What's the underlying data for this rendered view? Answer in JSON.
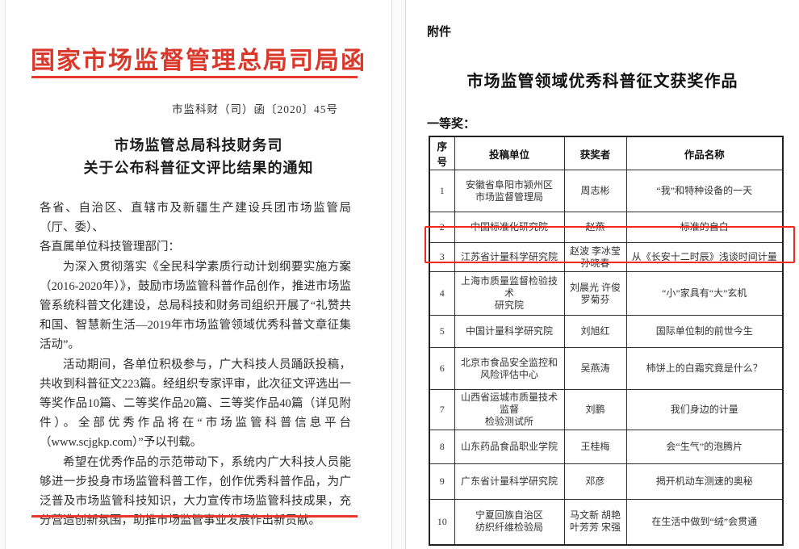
{
  "colors": {
    "letterhead_red": "#d9382a",
    "rule_red": "#e8382c",
    "highlight_red": "#f2281c"
  },
  "left_page": {
    "letterhead_title": "国家市场监督管理总局司局函",
    "doc_number": "市监科财（司）函〔2020〕45号",
    "title_line1": "市场监管总局科技财务司",
    "title_line2": "关于公布科普征文评比结果的通知",
    "salutation": [
      "各省、自治区、直辖市及新疆生产建设兵团市场监管局（厅、委）、",
      "各直属单位科技管理部门："
    ],
    "paragraphs": [
      "为深入贯彻落实《全民科学素质行动计划纲要实施方案（2016-2020年）》，鼓励市场监管科普作品创作，推进市场监管系统科普文化建设，总局科技和财务司组织开展了“礼赞共和国、智慧新生活—2019年市场监管领域优秀科普文章征集活动”。",
      "活动期间，各单位积极参与，广大科技人员踊跃投稿，共收到科普征文223篇。经组织专家评审，此次征文评选出一等奖作品10篇、二等奖作品20篇、三等奖作品40篇（详见附件）。全部优秀作品将在“市场监管科普信息平台（www.scjgkp.com）”予以刊载。",
      "希望在优秀作品的示范带动下，系统内广大科技人员能够进一步投身市场监管科普工作，创作优秀科普作品，为广泛普及市场监管科技知识，大力宣传市场监管科技成果，充分营造创新氛围，助推市场监管事业发展作出新贡献。"
    ]
  },
  "right_page": {
    "attachment_label": "附件",
    "title": "市场监管领域优秀科普征文获奖作品",
    "section_label": "一等奖：",
    "table": {
      "headers": [
        "序号",
        "投稿单位",
        "获奖者",
        "作品名称"
      ],
      "highlighted_row": 3,
      "rows": [
        {
          "no": "1",
          "unit": "安徽省阜阳市颍州区\n市场监督管理局",
          "winner": "周志彬",
          "title": "“我”和特种设备的一天"
        },
        {
          "no": "2",
          "unit": "中国标准化研究院",
          "winner": "赵燕",
          "title": "标准的自白"
        },
        {
          "no": "3",
          "unit": "江苏省计量科学研究院",
          "winner": "赵波 李冰莹\n孙晓春",
          "title": "从《长安十二时辰》浅谈时间计量"
        },
        {
          "no": "4",
          "unit": "上海市质量监督检验技术\n研究院",
          "winner": "刘晨光 许俊\n罗菊芬",
          "title": "“小”家具有“大”玄机"
        },
        {
          "no": "5",
          "unit": "中国计量科学研究院",
          "winner": "刘旭红",
          "title": "国际单位制的前世今生"
        },
        {
          "no": "6",
          "unit": "北京市食品安全监控和\n风险评估中心",
          "winner": "吴燕涛",
          "title": "柿饼上的白霜究竟是什么？"
        },
        {
          "no": "7",
          "unit": "山西省运城市质量技术监督\n检验测试所",
          "winner": "刘鹏",
          "title": "我们身边的计量"
        },
        {
          "no": "8",
          "unit": "山东药品食品职业学院",
          "winner": "王桂梅",
          "title": "会“生气”的泡腾片"
        },
        {
          "no": "9",
          "unit": "广东省计量科学研究院",
          "winner": "邓彦",
          "title": "揭开机动车测速的奥秘"
        },
        {
          "no": "10",
          "unit": "宁夏回族自治区\n纺织纤维检验局",
          "winner": "马文新 胡艳\n叶芳芳 宋强",
          "title": "在生活中做到“绒”会贯通"
        }
      ]
    }
  }
}
